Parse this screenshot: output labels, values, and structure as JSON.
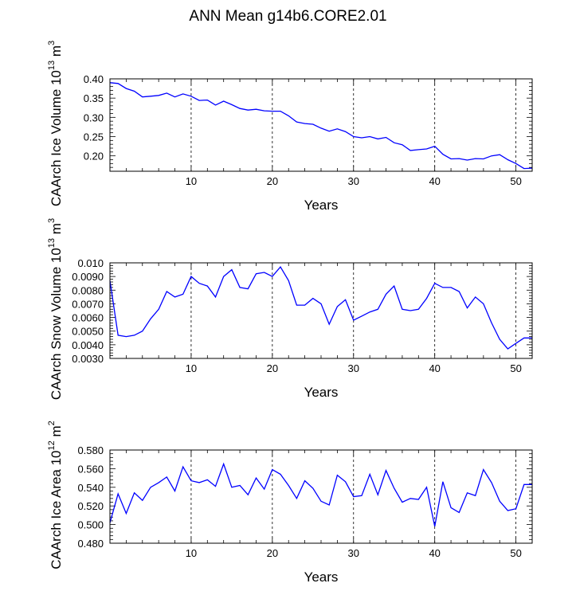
{
  "title": "ANN Mean g14b6.CORE2.01",
  "chart_data": [
    {
      "type": "line",
      "title": "",
      "xlabel": "Years",
      "ylabel": "CAArch Ice Volume 10",
      "ylabel_exp": "13",
      "ylabel_unit": "m",
      "ylabel_unit_exp": "3",
      "xlim": [
        0,
        52
      ],
      "ylim": [
        0.16,
        0.4
      ],
      "xticks": [
        "10",
        "20",
        "30",
        "40",
        "50"
      ],
      "yticks": [
        "0.20",
        "0.25",
        "0.30",
        "0.35",
        "0.40"
      ],
      "color": "#0000ff",
      "x": [
        0,
        1,
        2,
        3,
        4,
        5,
        6,
        7,
        8,
        9,
        10,
        11,
        12,
        13,
        14,
        15,
        16,
        17,
        18,
        19,
        20,
        21,
        22,
        23,
        24,
        25,
        26,
        27,
        28,
        29,
        30,
        31,
        32,
        33,
        34,
        35,
        36,
        37,
        38,
        39,
        40,
        41,
        42,
        43,
        44,
        45,
        46,
        47,
        48,
        49,
        50,
        51,
        52
      ],
      "values": [
        0.39,
        0.388,
        0.375,
        0.368,
        0.353,
        0.355,
        0.357,
        0.363,
        0.353,
        0.361,
        0.355,
        0.344,
        0.345,
        0.332,
        0.342,
        0.333,
        0.323,
        0.319,
        0.321,
        0.317,
        0.316,
        0.316,
        0.304,
        0.288,
        0.284,
        0.282,
        0.272,
        0.264,
        0.27,
        0.263,
        0.25,
        0.247,
        0.25,
        0.244,
        0.248,
        0.234,
        0.229,
        0.214,
        0.216,
        0.218,
        0.225,
        0.204,
        0.192,
        0.193,
        0.189,
        0.193,
        0.192,
        0.2,
        0.203,
        0.19,
        0.18,
        0.167,
        0.168
      ]
    },
    {
      "type": "line",
      "title": "",
      "xlabel": "Years",
      "ylabel": "CAArch Snow Volume 10",
      "ylabel_exp": "13",
      "ylabel_unit": "m",
      "ylabel_unit_exp": "3",
      "xlim": [
        0,
        52
      ],
      "ylim": [
        0.003,
        0.01
      ],
      "xticks": [
        "10",
        "20",
        "30",
        "40",
        "50"
      ],
      "yticks": [
        "0.0030",
        "0.0040",
        "0.0050",
        "0.0060",
        "0.0070",
        "0.0080",
        "0.0090",
        "0.010"
      ],
      "color": "#0000ff",
      "x": [
        0,
        1,
        2,
        3,
        4,
        5,
        6,
        7,
        8,
        9,
        10,
        11,
        12,
        13,
        14,
        15,
        16,
        17,
        18,
        19,
        20,
        21,
        22,
        23,
        24,
        25,
        26,
        27,
        28,
        29,
        30,
        31,
        32,
        33,
        34,
        35,
        36,
        37,
        38,
        39,
        40,
        41,
        42,
        43,
        44,
        45,
        46,
        47,
        48,
        49,
        50,
        51,
        52
      ],
      "values": [
        0.0087,
        0.0047,
        0.0046,
        0.0047,
        0.005,
        0.0059,
        0.0066,
        0.0079,
        0.0075,
        0.0077,
        0.009,
        0.0085,
        0.0083,
        0.0075,
        0.009,
        0.0095,
        0.0082,
        0.0081,
        0.0092,
        0.0093,
        0.009,
        0.0097,
        0.0087,
        0.0069,
        0.0069,
        0.0074,
        0.007,
        0.0055,
        0.0068,
        0.0073,
        0.0058,
        0.0061,
        0.0064,
        0.0066,
        0.0077,
        0.0083,
        0.0066,
        0.0065,
        0.0066,
        0.0074,
        0.0085,
        0.0082,
        0.0082,
        0.0079,
        0.0067,
        0.0075,
        0.007,
        0.0056,
        0.0044,
        0.0037,
        0.0041,
        0.0045,
        0.0045
      ]
    },
    {
      "type": "line",
      "title": "",
      "xlabel": "Years",
      "ylabel": "CAArch Ice Area 10",
      "ylabel_exp": "12",
      "ylabel_unit": "m",
      "ylabel_unit_exp": "2",
      "xlim": [
        0,
        52
      ],
      "ylim": [
        0.48,
        0.58
      ],
      "xticks": [
        "10",
        "20",
        "30",
        "40",
        "50"
      ],
      "yticks": [
        "0.480",
        "0.500",
        "0.520",
        "0.540",
        "0.560",
        "0.580"
      ],
      "color": "#0000ff",
      "x": [
        0,
        1,
        2,
        3,
        4,
        5,
        6,
        7,
        8,
        9,
        10,
        11,
        12,
        13,
        14,
        15,
        16,
        17,
        18,
        19,
        20,
        21,
        22,
        23,
        24,
        25,
        26,
        27,
        28,
        29,
        30,
        31,
        32,
        33,
        34,
        35,
        36,
        37,
        38,
        39,
        40,
        41,
        42,
        43,
        44,
        45,
        46,
        47,
        48,
        49,
        50,
        51,
        52
      ],
      "values": [
        0.502,
        0.533,
        0.512,
        0.534,
        0.526,
        0.54,
        0.545,
        0.551,
        0.536,
        0.562,
        0.547,
        0.545,
        0.548,
        0.541,
        0.565,
        0.54,
        0.542,
        0.532,
        0.55,
        0.538,
        0.559,
        0.554,
        0.542,
        0.528,
        0.547,
        0.539,
        0.525,
        0.521,
        0.553,
        0.546,
        0.53,
        0.531,
        0.554,
        0.532,
        0.558,
        0.539,
        0.524,
        0.528,
        0.527,
        0.54,
        0.498,
        0.546,
        0.518,
        0.513,
        0.534,
        0.531,
        0.559,
        0.545,
        0.525,
        0.515,
        0.517,
        0.543,
        0.543
      ]
    }
  ]
}
